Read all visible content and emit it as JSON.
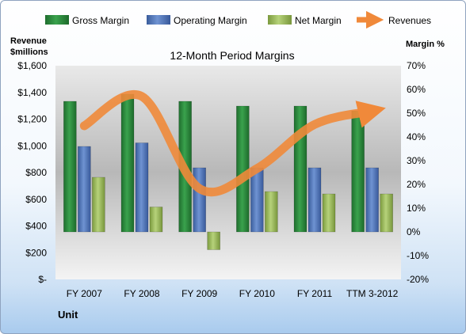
{
  "chart_data": {
    "type": "bar",
    "title": "12-Month Period Margins",
    "categories": [
      "FY 2007",
      "FY 2008",
      "FY 2009",
      "FY 2010",
      "FY 2011",
      "TTM 3-2012"
    ],
    "y_left_label": "Revenue $millions",
    "y_left_label_lines": [
      "Revenue",
      "$millions"
    ],
    "y_right_label": "Margin %",
    "xlabel": "Unit",
    "y_left_range": [
      0,
      1600
    ],
    "y_left_ticks": [
      "$-",
      "$200",
      "$400",
      "$600",
      "$800",
      "$1,000",
      "$1,200",
      "$1,400",
      "$1,600"
    ],
    "y_right_range": [
      -20,
      70
    ],
    "y_right_ticks": [
      "-20%",
      "-10%",
      "0%",
      "10%",
      "20%",
      "30%",
      "40%",
      "50%",
      "60%",
      "70%"
    ],
    "legend_position": "top",
    "grid": false,
    "series": [
      {
        "name": "Gross Margin",
        "type": "bar",
        "axis": "right",
        "color": "#2e8b3d",
        "values": [
          55,
          58,
          55,
          53,
          53,
          51
        ]
      },
      {
        "name": "Operating Margin",
        "type": "bar",
        "axis": "right",
        "color": "#4f75b8",
        "values": [
          36,
          37.5,
          27,
          27,
          27,
          27
        ]
      },
      {
        "name": "Net Margin",
        "type": "bar",
        "axis": "right",
        "color": "#9bbb59",
        "values": [
          23,
          10.5,
          -7.5,
          17,
          16,
          16
        ]
      },
      {
        "name": "Revenues",
        "type": "line",
        "axis": "left",
        "color": "#f0893a",
        "values": [
          1150,
          1370,
          680,
          830,
          1160,
          1260
        ]
      }
    ]
  }
}
